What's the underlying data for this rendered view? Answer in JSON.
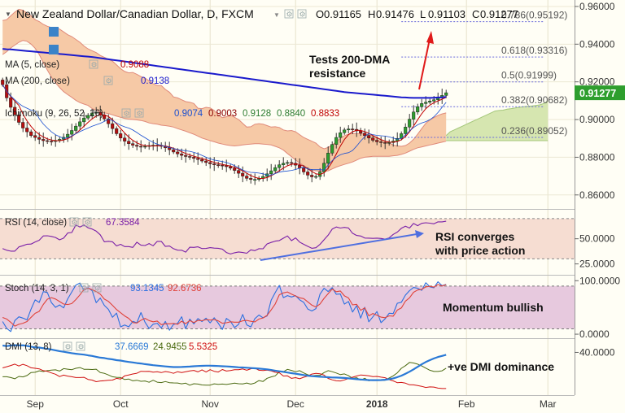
{
  "header": {
    "title": "New Zealand Dollar/Canadian Dollar, D, FXCM",
    "ohlc": [
      {
        "k": "O",
        "v": "0.91165"
      },
      {
        "k": "H",
        "v": "0.91476"
      },
      {
        "k": "L",
        "v": "0.91103"
      },
      {
        "k": "C",
        "v": "0.91277"
      }
    ]
  },
  "legend": [
    {
      "label": "MA (5, close)",
      "value": "0.9088",
      "color": "#c00000"
    },
    {
      "label": "MA (200, close)",
      "value": "0.9138",
      "color": "#1a1acc"
    },
    {
      "label": "Ichimoku (9, 26, 52, 26)",
      "values": [
        "0.9074",
        "0.9003",
        "0.9128",
        "0.8840",
        "0.8833"
      ],
      "colors": [
        "#1a4fd0",
        "#8b0000",
        "#2e7d32",
        "#2e7d32",
        "#c00000"
      ]
    }
  ],
  "price_tag": "0.91277",
  "annotations": {
    "price": [
      "Tests 200-DMA",
      "resistance"
    ],
    "rsi": [
      "RSI converges",
      "with price action"
    ],
    "stoch": "Momentum bullish",
    "dmi": "+ve DMI dominance"
  },
  "rsi_legend": {
    "label": "RSI (14, close)",
    "value": "67.3584"
  },
  "stoch_legend": {
    "label": "Stoch (14, 3, 1)",
    "k": "93.1345",
    "d": "92.6736"
  },
  "dmi_legend": {
    "label": "DMI (13, 8)",
    "v1": "37.6669",
    "v2": "24.9455",
    "v3": "5.5325"
  },
  "chart_data": {
    "type": "candlestick",
    "x_labels": [
      {
        "label": "Sep",
        "bar": 8
      },
      {
        "label": "Oct",
        "bar": 29
      },
      {
        "label": "Nov",
        "bar": 51
      },
      {
        "label": "Dec",
        "bar": 72
      },
      {
        "label": "2018",
        "bar": 92
      },
      {
        "label": "Feb",
        "bar": 114
      },
      {
        "label": "Mar",
        "bar": 134
      }
    ],
    "price_axis": {
      "ylim": [
        0.853,
        0.963
      ],
      "ticks": [
        "0.96000",
        "0.94000",
        "0.92000",
        "0.90000",
        "0.88000",
        "0.86000"
      ],
      "tick_values": [
        0.96,
        0.94,
        0.92,
        0.9,
        0.88,
        0.86
      ]
    },
    "rsi_axis": {
      "ylim": [
        15,
        78
      ],
      "ticks": [
        "50.0000",
        "25.0000"
      ],
      "tick_values": [
        50,
        25
      ]
    },
    "stoch_axis": {
      "ylim": [
        -6,
        108
      ],
      "ticks": [
        "100.0000",
        "0.0000"
      ],
      "tick_values": [
        100,
        0
      ]
    },
    "dmi_axis": {
      "ylim": [
        0,
        52
      ],
      "ticks": [
        "40.0000"
      ],
      "tick_values": [
        40
      ]
    },
    "fib_levels": [
      {
        "label": "0.786(0.95192)",
        "value": 0.95192
      },
      {
        "label": "0.618(0.93316)",
        "value": 0.93316
      },
      {
        "label": "0.5(0.91999)",
        "value": 0.91999
      },
      {
        "label": "0.382(0.90682)",
        "value": 0.90682
      },
      {
        "label": "0.236(0.89052)",
        "value": 0.89052
      }
    ],
    "closes": [
      0.9185,
      0.9115,
      0.9065,
      0.9025,
      0.8985,
      0.8955,
      0.8935,
      0.8915,
      0.8905,
      0.8895,
      0.8888,
      0.8885,
      0.8884,
      0.8888,
      0.8895,
      0.8906,
      0.8922,
      0.8942,
      0.8965,
      0.8988,
      0.9008,
      0.9022,
      0.9035,
      0.9038,
      0.9025,
      0.9004,
      0.8978,
      0.8952,
      0.8925,
      0.8902,
      0.8885,
      0.8872,
      0.8864,
      0.8858,
      0.8855,
      0.8858,
      0.8862,
      0.8864,
      0.8863,
      0.8858,
      0.885,
      0.884,
      0.8828,
      0.8818,
      0.881,
      0.8804,
      0.88,
      0.8794,
      0.8788,
      0.878,
      0.8772,
      0.8765,
      0.876,
      0.8758,
      0.8755,
      0.875,
      0.8742,
      0.873,
      0.8715,
      0.87,
      0.8688,
      0.8682,
      0.8682,
      0.8688,
      0.8698,
      0.8712,
      0.8728,
      0.8745,
      0.876,
      0.8768,
      0.8772,
      0.8768,
      0.8758,
      0.8742,
      0.8722,
      0.8705,
      0.8696,
      0.8698,
      0.8722,
      0.8768,
      0.8822,
      0.8868,
      0.8905,
      0.893,
      0.8945,
      0.895,
      0.8948,
      0.894,
      0.8928,
      0.8915,
      0.8902,
      0.889,
      0.8882,
      0.8878,
      0.8876,
      0.8878,
      0.8886,
      0.89,
      0.8925,
      0.896,
      0.9002,
      0.904,
      0.9068,
      0.9085,
      0.9092,
      0.9098,
      0.9105,
      0.9115,
      0.9128,
      0.9142
    ],
    "ma200": [
      0.9375,
      0.9373,
      0.9372,
      0.937,
      0.9368,
      0.9366,
      0.9364,
      0.9362,
      0.936,
      0.9358,
      0.9356,
      0.9354,
      0.9352,
      0.935,
      0.9348,
      0.9346,
      0.9344,
      0.9342,
      0.934,
      0.9338,
      0.9336,
      0.9334,
      0.9332,
      0.9329,
      0.9326,
      0.9323,
      0.932,
      0.9317,
      0.9314,
      0.9311,
      0.9308,
      0.9305,
      0.9302,
      0.9299,
      0.9296,
      0.9293,
      0.929,
      0.9287,
      0.9284,
      0.9281,
      0.9278,
      0.9275,
      0.9272,
      0.9269,
      0.9266,
      0.9263,
      0.926,
      0.9257,
      0.9254,
      0.9251,
      0.9248,
      0.9245,
      0.9242,
      0.9239,
      0.9236,
      0.9233,
      0.923,
      0.9227,
      0.9224,
      0.9221,
      0.9218,
      0.9215,
      0.9212,
      0.9209,
      0.9206,
      0.9203,
      0.92,
      0.9197,
      0.9194,
      0.9191,
      0.9188,
      0.9185,
      0.9182,
      0.9179,
      0.9176,
      0.9173,
      0.917,
      0.9167,
      0.9164,
      0.9161,
      0.9158,
      0.9155,
      0.9152,
      0.9149,
      0.9146,
      0.9144,
      0.9142,
      0.914,
      0.9138,
      0.9136,
      0.9134,
      0.9132,
      0.913,
      0.9128,
      0.9126,
      0.9124,
      0.9122,
      0.912,
      0.9118,
      0.9117,
      0.9116,
      0.9115,
      0.9115,
      0.9115,
      0.9115,
      0.9115,
      0.9116,
      0.9117,
      0.9118,
      0.912
    ],
    "kumo_top": [
      0.9525,
      0.953,
      0.955,
      0.957,
      0.9585,
      0.958,
      0.9565,
      0.955,
      0.953,
      0.952,
      0.9505,
      0.9495,
      0.9488,
      0.949,
      0.948,
      0.9465,
      0.945,
      0.944,
      0.9425,
      0.941,
      0.939,
      0.9375,
      0.9365,
      0.9355,
      0.934,
      0.933,
      0.932,
      0.931,
      0.929,
      0.927,
      0.9255,
      0.9248,
      0.925,
      0.924,
      0.9228,
      0.922,
      0.9205,
      0.919,
      0.918,
      0.918,
      0.916,
      0.9145,
      0.912,
      0.9115,
      0.9105,
      0.9095,
      0.9092,
      0.9085,
      0.906,
      0.9058,
      0.9065,
      0.9062,
      0.9048,
      0.9025,
      0.901,
      0.9015,
      0.9025,
      0.9012,
      0.9,
      0.898,
      0.896,
      0.8962,
      0.8975,
      0.8978,
      0.8975,
      0.8968,
      0.896,
      0.8962,
      0.8958,
      0.8945,
      0.894,
      0.8942,
      0.8935,
      0.892,
      0.8905,
      0.8895,
      0.8885,
      0.8875,
      0.8855,
      0.8845,
      0.8852,
      0.8865,
      0.8882,
      0.89,
      0.8915,
      0.8922,
      0.8925,
      0.8925,
      0.8925,
      0.8922,
      0.8918,
      0.8912,
      0.8905,
      0.8895,
      0.8885,
      0.8875,
      0.8865,
      0.886,
      0.8858,
      0.8862,
      0.8875,
      0.8895,
      0.8922,
      0.8952,
      0.898,
      0.8998,
      0.901,
      0.9022,
      0.903,
      0.9035
    ],
    "kumo_bottom": [
      0.9345,
      0.936,
      0.938,
      0.9395,
      0.941,
      0.942,
      0.9415,
      0.94,
      0.9378,
      0.9345,
      0.9302,
      0.9262,
      0.9225,
      0.9195,
      0.917,
      0.9148,
      0.9132,
      0.9118,
      0.9102,
      0.909,
      0.9082,
      0.9075,
      0.9058,
      0.905,
      0.904,
      0.9035,
      0.9032,
      0.9025,
      0.9018,
      0.9012,
      0.9006,
      0.9002,
      0.9,
      0.8998,
      0.8995,
      0.899,
      0.8982,
      0.8978,
      0.8975,
      0.897,
      0.8968,
      0.8965,
      0.896,
      0.8952,
      0.8945,
      0.8938,
      0.893,
      0.8922,
      0.8912,
      0.8902,
      0.8895,
      0.8888,
      0.8882,
      0.8875,
      0.887,
      0.8865,
      0.8862,
      0.886,
      0.8862,
      0.8865,
      0.8868,
      0.887,
      0.8872,
      0.8872,
      0.887,
      0.8868,
      0.8865,
      0.8858,
      0.885,
      0.8838,
      0.882,
      0.8803,
      0.8785,
      0.877,
      0.8755,
      0.8742,
      0.8732,
      0.8728,
      0.8726,
      0.8725,
      0.8728,
      0.8738,
      0.8748,
      0.8755,
      0.8762,
      0.8768,
      0.8775,
      0.8785,
      0.8795,
      0.88,
      0.8802,
      0.8805,
      0.8805,
      0.8805,
      0.8805,
      0.8805,
      0.8808,
      0.881,
      0.8815,
      0.8822,
      0.8832,
      0.8842,
      0.885,
      0.8855,
      0.886,
      0.8865,
      0.887,
      0.8875,
      0.888,
      0.8885
    ],
    "future_kumo_top": [
      0.8915,
      0.8935,
      0.8945,
      0.8955,
      0.8965,
      0.8975,
      0.8985,
      0.8995,
      0.9005,
      0.9015,
      0.9025,
      0.9035,
      0.9045,
      0.9048,
      0.905,
      0.9055,
      0.9058,
      0.9062,
      0.9065,
      0.9068,
      0.907,
      0.9072,
      0.9075,
      0.9078,
      0.9085,
      0.9098
    ],
    "future_kumo_bottom": [
      0.8888,
      0.8888,
      0.8888,
      0.8888,
      0.8888,
      0.8888,
      0.8888,
      0.8888,
      0.8888,
      0.8888,
      0.8888,
      0.8888,
      0.8888,
      0.8888,
      0.8888,
      0.8888,
      0.8888,
      0.8888,
      0.8888,
      0.8888,
      0.8888,
      0.8888,
      0.8888,
      0.8888,
      0.8888,
      0.8888
    ],
    "rsi": [
      40.2,
      38.6,
      37.7,
      37.7,
      41.9,
      43.1,
      44.6,
      44.7,
      46.8,
      48.5,
      52.8,
      53.0,
      52.3,
      51.3,
      48.9,
      50.6,
      55.7,
      56.2,
      63.6,
      61.6,
      63.7,
      60.9,
      59.7,
      57.6,
      53.9,
      47.0,
      47.5,
      47.0,
      42.9,
      44.5,
      42.2,
      42.2,
      41.4,
      46.6,
      43.6,
      43.3,
      45.2,
      43.0,
      47.4,
      47.4,
      42.4,
      42.8,
      40.1,
      38.7,
      38.6,
      36.7,
      41.6,
      41.4,
      42.0,
      40.3,
      40.4,
      41.2,
      40.7,
      40.5,
      39.7,
      36.3,
      34.9,
      36.1,
      36.9,
      36.3,
      35.6,
      39.0,
      38.2,
      40.1,
      40.0,
      44.9,
      46.3,
      47.6,
      48.2,
      50.5,
      52.8,
      48.1,
      50.9,
      46.7,
      44.5,
      42.5,
      40.5,
      41.1,
      44.4,
      49.0,
      53.5,
      59.6,
      61.7,
      60.6,
      61.3,
      60.7,
      55.5,
      53.3,
      52.7,
      50.7,
      50.6,
      50.4,
      50.6,
      50.3,
      49.6,
      50.9,
      54.3,
      56.6,
      60.4,
      62.5,
      60.6,
      65.2,
      63.0,
      65.3,
      65.9,
      65.5,
      64.8,
      66.8,
      66.8,
      67.4
    ],
    "stoch_k": [
      23.6,
      10.8,
      4.9,
      25.5,
      32.4,
      30.1,
      26.8,
      47.1,
      64.3,
      59.4,
      79.6,
      77.9,
      58.9,
      50.2,
      54.7,
      49.2,
      66.1,
      78.9,
      91.7,
      95.7,
      81.9,
      87.0,
      81.2,
      58.9,
      67.6,
      53.9,
      46.5,
      31.6,
      39.5,
      13.8,
      17.3,
      13.7,
      24.0,
      21.3,
      40.3,
      22.5,
      10.6,
      18.6,
      20.4,
      11.7,
      24.0,
      7.4,
      18.2,
      20.2,
      32.6,
      10.3,
      28.2,
      19.3,
      29.3,
      23.7,
      30.1,
      21.0,
      30.8,
      20.5,
      8.8,
      29.4,
      24.1,
      12.4,
      18.4,
      36.8,
      17.4,
      13.6,
      29.1,
      35.8,
      30.7,
      34.2,
      63.6,
      77.8,
      91.2,
      68.3,
      72.1,
      69.5,
      72.2,
      64.2,
      59.5,
      47.0,
      43.4,
      47.8,
      74.9,
      85.8,
      79.7,
      87.1,
      74.7,
      75.2,
      56.1,
      61.2,
      41.5,
      53.3,
      30.1,
      50.2,
      23.2,
      32.5,
      42.3,
      21.5,
      28.6,
      39.1,
      38.6,
      57.9,
      59.6,
      73.0,
      81.4,
      87.4,
      85.8,
      82.0,
      96.2,
      88.5,
      86.7,
      98.0,
      90.7,
      93.1
    ],
    "stoch_d": [
      31.2,
      28.3,
      22.2,
      15.1,
      18.4,
      20.4,
      23.6,
      31.5,
      39.0,
      42.7,
      55.6,
      65.5,
      68.3,
      65.8,
      61.0,
      56.3,
      55.4,
      57.2,
      64.7,
      73.5,
      83.5,
      86.0,
      83.2,
      79.7,
      74.9,
      65.6,
      61.3,
      54.0,
      46.1,
      40.1,
      34.1,
      29.5,
      21.7,
      20.9,
      26.1,
      29.5,
      25.4,
      23.2,
      24.5,
      17.8,
      19.6,
      19.4,
      20.2,
      18.4,
      24.2,
      19.7,
      25.5,
      21.8,
      25.8,
      25.1,
      27.3,
      26.4,
      27.4,
      24.8,
      20.5,
      21.4,
      23.2,
      22.5,
      22.4,
      25.0,
      25.7,
      24.1,
      23.0,
      28.4,
      30.4,
      35.2,
      45.4,
      56.4,
      73.6,
      77.1,
      79.0,
      75.0,
      71.4,
      68.1,
      66.5,
      60.4,
      54.4,
      50.8,
      56.4,
      66.9,
      75.6,
      84.5,
      79.5,
      80.8,
      71.6,
      67.7,
      54.8,
      55.9,
      44.6,
      49.2,
      34.3,
      38.7,
      35.3,
      31.9,
      30.8,
      34.3,
      33.6,
      45.1,
      49.1,
      61.8,
      68.0,
      78.3,
      82.6,
      83.9,
      88.4,
      89.6,
      87.9,
      92.8,
      90.1,
      92.7
    ],
    "dmi_plus": [
      16.8,
      16.8,
      16.0,
      14.8,
      17.1,
      16.6,
      17.9,
      20.8,
      21.0,
      22.4,
      21.7,
      22.6,
      23.1,
      23.4,
      22.2,
      24.5,
      24.0,
      23.5,
      24.8,
      25.5,
      23.9,
      23.9,
      23.7,
      24.0,
      20.8,
      20.0,
      18.5,
      16.8,
      16.2,
      16.0,
      14.1,
      14.6,
      12.9,
      13.4,
      12.4,
      12.7,
      11.5,
      13.4,
      11.6,
      11.2,
      12.2,
      11.1,
      10.9,
      10.8,
      10.0,
      10.6,
      8.7,
      10.1,
      9.8,
      8.9,
      8.7,
      8.8,
      10.0,
      9.5,
      9.8,
      9.4,
      10.0,
      10.7,
      10.1,
      9.9,
      10.8,
      9.7,
      10.8,
      13.1,
      12.3,
      15.3,
      16.6,
      17.6,
      21.4,
      21.5,
      23.8,
      22.8,
      21.5,
      22.6,
      20.4,
      18.6,
      17.6,
      18.1,
      18.1,
      20.7,
      22.6,
      21.6,
      20.3,
      18.8,
      19.5,
      17.8,
      15.2,
      15.8,
      13.5,
      15.3,
      12.9,
      13.9,
      13.3,
      13.2,
      13.4,
      15.5,
      17.6,
      20.5,
      24.8,
      27.3,
      30.4,
      29.9,
      28.8,
      27.1,
      25.0,
      23.0,
      21.8,
      21.8,
      22.4,
      24.9
    ],
    "dmi_minus": [
      25.2,
      26.3,
      27.5,
      28.8,
      27.0,
      28.6,
      27.3,
      25.3,
      24.8,
      24.3,
      22.6,
      21.9,
      20.4,
      19.2,
      16.9,
      18.3,
      17.4,
      16.8,
      16.0,
      16.0,
      16.2,
      14.2,
      13.6,
      12.0,
      12.7,
      13.0,
      13.4,
      13.6,
      15.2,
      14.6,
      17.6,
      18.5,
      19.4,
      20.1,
      22.0,
      21.8,
      21.9,
      21.1,
      21.5,
      20.7,
      21.7,
      21.1,
      20.0,
      21.6,
      20.8,
      21.6,
      22.3,
      22.8,
      21.4,
      23.4,
      21.3,
      23.5,
      22.0,
      21.3,
      23.7,
      22.2,
      22.7,
      23.5,
      23.5,
      24.2,
      23.0,
      24.4,
      25.1,
      23.0,
      22.7,
      23.1,
      22.4,
      21.0,
      20.6,
      17.5,
      17.6,
      15.2,
      15.9,
      14.8,
      16.3,
      17.5,
      19.3,
      20.0,
      19.6,
      18.3,
      15.1,
      13.8,
      12.9,
      12.7,
      13.7,
      15.1,
      16.3,
      17.5,
      18.5,
      18.2,
      17.7,
      16.9,
      17.1,
      16.4,
      15.8,
      14.0,
      12.8,
      11.1,
      11.3,
      10.6,
      9.1,
      9.0,
      8.3,
      7.6,
      6.5,
      7.1,
      6.9,
      5.9,
      5.5,
      5.5
    ],
    "adx": [
      46.6,
      46.0,
      46.6,
      46.9,
      46.7,
      46.8,
      46.2,
      45.5,
      44.8,
      44.6,
      44.0,
      43.4,
      42.8,
      42.0,
      41.2,
      40.6,
      39.9,
      39.3,
      38.7,
      38.3,
      37.9,
      37.2,
      36.6,
      35.8,
      35.0,
      34.6,
      33.8,
      33.4,
      32.6,
      32.2,
      31.5,
      30.9,
      30.4,
      29.8,
      29.4,
      28.8,
      28.3,
      27.8,
      27.4,
      27.0,
      26.6,
      26.3,
      26.0,
      26.0,
      26.1,
      26.3,
      26.5,
      26.8,
      27.0,
      27.2,
      27.3,
      27.3,
      27.2,
      27.0,
      26.8,
      26.6,
      26.4,
      26.1,
      25.8,
      25.6,
      25.4,
      25.1,
      24.8,
      24.5,
      24.2,
      23.8,
      23.2,
      22.6,
      22.0,
      21.4,
      20.8,
      20.2,
      19.6,
      19.0,
      18.4,
      17.8,
      17.4,
      17.1,
      16.8,
      16.5,
      16.3,
      16.1,
      16.0,
      15.8,
      15.6,
      15.2,
      14.8,
      14.4,
      14.1,
      13.8,
      13.6,
      13.5,
      13.5,
      13.6,
      13.9,
      14.4,
      15.2,
      16.4,
      17.8,
      19.6,
      21.6,
      23.8,
      26.2,
      28.6,
      30.8,
      32.6,
      34.2,
      35.6,
      36.6,
      37.7
    ]
  }
}
